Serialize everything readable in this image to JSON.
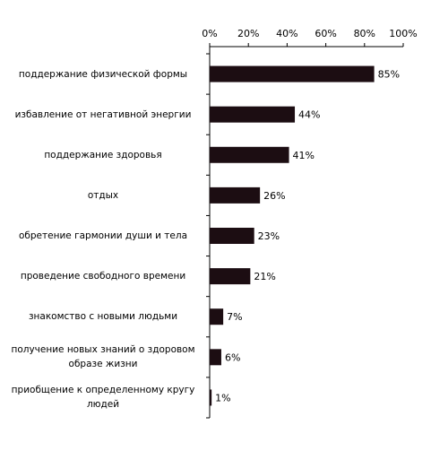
{
  "chart_data": {
    "type": "bar",
    "orientation": "horizontal",
    "categories": [
      "поддержание физической формы",
      "избавление от негативной энергии",
      "поддержание здоровья",
      "отдых",
      "обретение гармонии души и тела",
      "проведение свободного времени",
      "знакомство с новыми людьми",
      "получение новых знаний о здоровом\nобразе жизни",
      "приобщение к определенному кругу\nлюдей"
    ],
    "values": [
      85,
      44,
      41,
      26,
      23,
      21,
      7,
      6,
      1
    ],
    "value_labels": [
      "85%",
      "44%",
      "41%",
      "26%",
      "23%",
      "21%",
      "7%",
      "6%",
      "1%"
    ],
    "color": "#1c0d12",
    "xlim": [
      0,
      100
    ],
    "xticks": [
      {
        "value": 0,
        "label": "0%"
      },
      {
        "value": 20,
        "label": "20%"
      },
      {
        "value": 40,
        "label": "40%"
      },
      {
        "value": 60,
        "label": "60%"
      },
      {
        "value": 80,
        "label": "80%"
      },
      {
        "value": 100,
        "label": "100%"
      }
    ],
    "grid": false
  }
}
